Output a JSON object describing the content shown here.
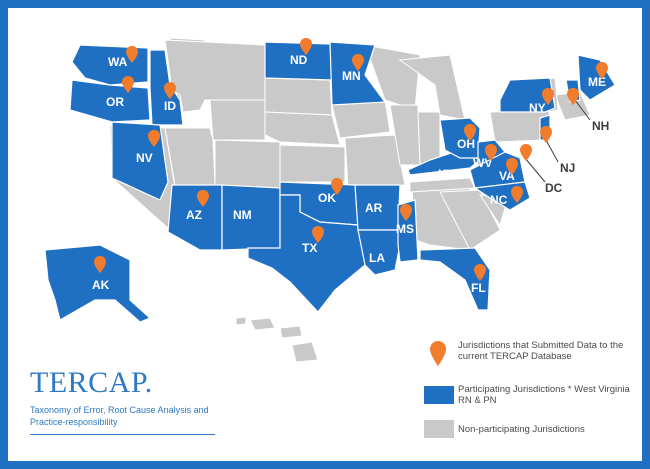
{
  "colors": {
    "participating": "#1f6fc3",
    "non_participating": "#c9c9c9",
    "pin": "#f07c2c",
    "border": "#1f6fc3",
    "label_on_blue": "#ffffff",
    "label_external": "#3d3d3d"
  },
  "states": {
    "wa": "WA",
    "or": "OR",
    "id": "ID",
    "nv": "NV",
    "az": "AZ",
    "nm": "NM",
    "nd": "ND",
    "mn": "MN",
    "ok": "OK",
    "tx": "TX",
    "ar": "AR",
    "la": "LA",
    "ms": "MS",
    "fl": "FL",
    "ky": "KY",
    "oh": "OH",
    "wv": "WV",
    "va": "VA",
    "nc": "NC",
    "ny": "NY",
    "me": "ME",
    "ak": "AK",
    "nh": "NH",
    "nj": "NJ",
    "dc": "DC"
  },
  "participating_states": [
    "WA",
    "OR",
    "ID",
    "NV",
    "AZ",
    "NM",
    "ND",
    "MN",
    "OK",
    "TX",
    "AR",
    "LA",
    "MS",
    "FL",
    "KY",
    "OH",
    "WV",
    "VA",
    "NC",
    "NY",
    "ME",
    "AK",
    "NH",
    "NJ",
    "DC"
  ],
  "submitted_states": [
    "WA",
    "OR",
    "ID",
    "NV",
    "AZ",
    "ND",
    "MN",
    "OK",
    "TX",
    "MS",
    "FL",
    "OH",
    "WV",
    "VA",
    "NC",
    "NY",
    "ME",
    "AK",
    "NJ",
    "NH",
    "DC"
  ],
  "legend": {
    "submitted": "Jurisdictions that Submitted Data to the current TERCAP Database",
    "participating": "Participating Jurisdictions * West Virginia RN & PN",
    "non_participating": "Non-participating Jurisdictions"
  },
  "logo": {
    "wordmark": "TERCAP.",
    "subtitle": "Taxonomy of Error, Root Cause Analysis and Practice-responsibility"
  }
}
